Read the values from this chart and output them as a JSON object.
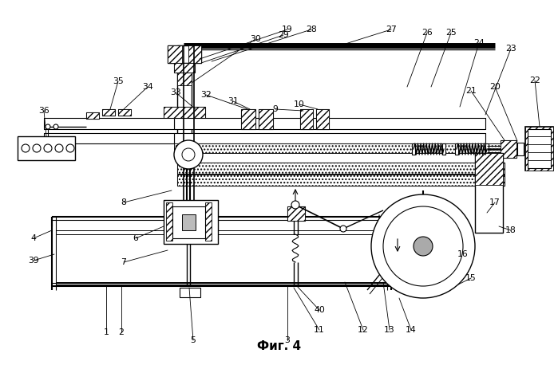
{
  "title": "Фиг. 4",
  "title_fontsize": 11,
  "title_bold": true,
  "bg_color": "#ffffff",
  "line_color": "#000000",
  "figsize": [
    6.99,
    4.58
  ],
  "dpi": 100
}
